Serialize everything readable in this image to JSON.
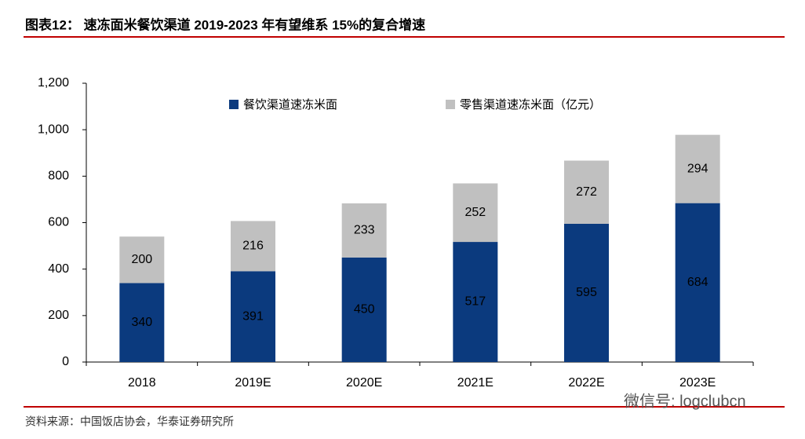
{
  "chart_data": {
    "type": "bar",
    "stacked": true,
    "title": "图表12：  速冻面米餐饮渠道 2019-2023 年有望维系 15%的复合增速",
    "categories": [
      "2018",
      "2019E",
      "2020E",
      "2021E",
      "2022E",
      "2023E"
    ],
    "series": [
      {
        "name": "餐饮渠道速冻米面",
        "color": "#0b3a7e",
        "values": [
          340,
          391,
          450,
          517,
          595,
          684
        ]
      },
      {
        "name": "零售渠道速冻米面（亿元）",
        "color": "#c0c0c0",
        "values": [
          200,
          216,
          233,
          252,
          272,
          294
        ]
      }
    ],
    "ylim": [
      0,
      1200
    ],
    "yticks": [
      0,
      200,
      400,
      600,
      800,
      {
        "value": 1000,
        "label": "1,000"
      },
      {
        "value": 1200,
        "label": "1,200"
      }
    ],
    "grid": false,
    "legend": "top",
    "source": "资料来源：中国饭店协会，华泰证券研究所"
  },
  "watermark": "微信号: logclubcn"
}
